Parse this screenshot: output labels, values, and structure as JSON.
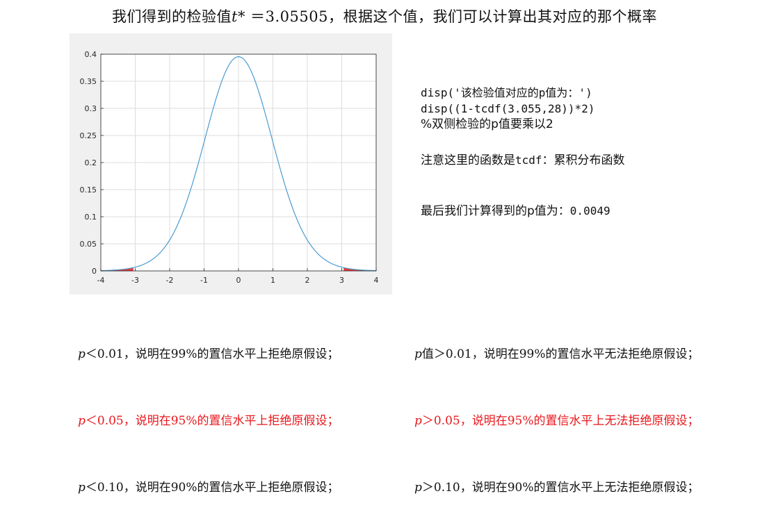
{
  "title": {
    "prefix": "我们得到的检验值",
    "math": "t*",
    "equals": " ＝3.05505",
    "suffix": "，根据这个值，我们可以计算出其对应的那个概率"
  },
  "code": {
    "line1": "disp('该检验值对应的p值为：')",
    "line2": "disp((1-tcdf(3.055,28))*2)",
    "line3": "%双侧检验的p值要乘以2"
  },
  "note": {
    "prefix": "注意这里的函数是",
    "func": "tcdf",
    "suffix": "：累积分布函数"
  },
  "result": {
    "label": "最后我们计算得到的p值为：",
    "value": "0.0049"
  },
  "rules_left": [
    {
      "sym": "p",
      "text": "＜0.01，说明在99%的置信水平上拒绝原假设；",
      "red": false
    },
    {
      "sym": "p",
      "text": "＜0.05，说明在95%的置信水平上拒绝原假设；",
      "red": true
    },
    {
      "sym": "p",
      "text": "＜0.10，说明在90%的置信水平上拒绝原假设；",
      "red": false
    }
  ],
  "rules_right": [
    {
      "sym": "p",
      "text": "值＞0.01，说明在99%的置信水平无法拒绝原假设；",
      "red": false
    },
    {
      "sym": "p",
      "text": "＞0.05，说明在95%的置信水平上无法拒绝原假设；",
      "red": true
    },
    {
      "sym": "p",
      "text": "＞0.10，说明在90%的置信水平上无法拒绝原假设；",
      "red": false
    }
  ],
  "chart_data": {
    "type": "line",
    "title": "",
    "xlabel": "",
    "ylabel": "",
    "xlim": [
      -4,
      4
    ],
    "ylim": [
      0,
      0.4
    ],
    "xticks": [
      -4,
      -3,
      -2,
      -1,
      0,
      1,
      2,
      3,
      4
    ],
    "yticks": [
      0,
      0.05,
      0.1,
      0.15,
      0.2,
      0.25,
      0.3,
      0.35,
      0.4
    ],
    "ytick_labels": [
      "0",
      "0.05",
      "0.1",
      "0.15",
      "0.2",
      "0.25",
      "0.3",
      "0.35",
      "0.4"
    ],
    "grid": true,
    "series": [
      {
        "distribution": "student-t",
        "df": 28,
        "color": "#4a9bd1"
      }
    ],
    "shaded_tails": {
      "critical_value": 3.05505,
      "color": "#e8161b"
    },
    "background_color": "#f0f0f0",
    "plot_color": "#ffffff"
  }
}
